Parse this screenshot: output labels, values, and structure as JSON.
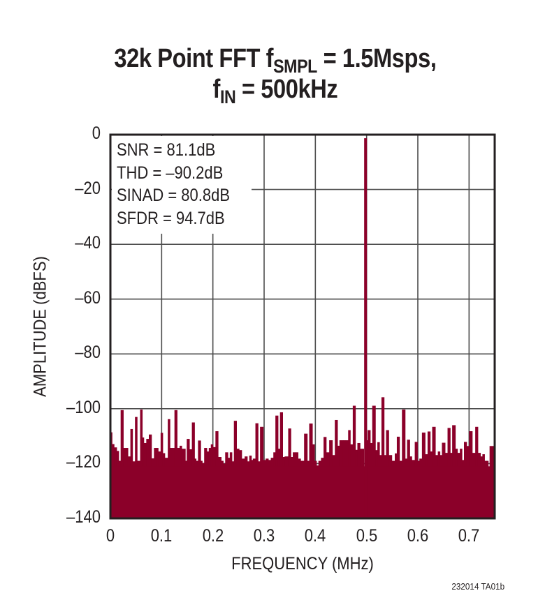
{
  "title": {
    "line1_prefix": "32k Point FFT f",
    "line1_sub": "SMPL",
    "line1_suffix": " = 1.5Msps,",
    "line2_prefix": "f",
    "line2_sub": "IN",
    "line2_suffix": " = 500kHz"
  },
  "legend": {
    "lines": [
      "SNR = 81.1dB",
      "THD = –90.2dB",
      "SINAD = 80.8dB",
      "SFDR = 94.7dB"
    ]
  },
  "footnote": "232014 TA01b",
  "colors": {
    "bars": "#8b0029",
    "grid": "#4d4d4d",
    "frame": "#231f20"
  },
  "chart_data": {
    "type": "bar",
    "title": "32k Point FFT fSMPL = 1.5Msps, fIN = 500kHz",
    "xlabel": "FREQUENCY (MHz)",
    "ylabel": "AMPLITUDE (dBFS)",
    "xlim": [
      0,
      0.75
    ],
    "ylim": [
      -140,
      0
    ],
    "xticks": [
      "0",
      "0.1",
      "0.2",
      "0.3",
      "0.4",
      "0.5",
      "0.6",
      "0.7"
    ],
    "xtick_values": [
      0,
      0.1,
      0.2,
      0.3,
      0.4,
      0.5,
      0.6,
      0.7
    ],
    "yticks": [
      "0",
      "–20",
      "–40",
      "–60",
      "–80",
      "–100",
      "–120",
      "–140"
    ],
    "ytick_values": [
      0,
      -20,
      -40,
      -60,
      -80,
      -100,
      -120,
      -140
    ],
    "grid": true,
    "annotations": [
      "SNR = 81.1dB",
      "THD = –90.2dB",
      "SINAD = 80.8dB",
      "SFDR = 94.7dB"
    ],
    "fundamental": {
      "freq_mhz": 0.4925,
      "amplitude_dbfs": -1.3
    },
    "bin_width_mhz": 0.0045,
    "bins": [
      [
        0.0,
        -108.6
      ],
      [
        0.003,
        -112.9
      ],
      [
        0.007,
        -114.1
      ],
      [
        0.012,
        -115.4
      ],
      [
        0.016,
        -119.0
      ],
      [
        0.02,
        -100.5
      ],
      [
        0.025,
        -114.3
      ],
      [
        0.03,
        -114.3
      ],
      [
        0.034,
        -117.4
      ],
      [
        0.039,
        -107.4
      ],
      [
        0.043,
        -119.2
      ],
      [
        0.048,
        -103.0
      ],
      [
        0.052,
        -119.0
      ],
      [
        0.058,
        -100.3
      ],
      [
        0.062,
        -110.5
      ],
      [
        0.065,
        -112.5
      ],
      [
        0.07,
        -111.0
      ],
      [
        0.075,
        -109.4
      ],
      [
        0.08,
        -118.1
      ],
      [
        0.085,
        -114.3
      ],
      [
        0.089,
        -114.3
      ],
      [
        0.093,
        -115.6
      ],
      [
        0.098,
        -108.8
      ],
      [
        0.102,
        -116.2
      ],
      [
        0.106,
        -117.9
      ],
      [
        0.112,
        -103.8
      ],
      [
        0.116,
        -114.3
      ],
      [
        0.12,
        -114.3
      ],
      [
        0.125,
        -100.5
      ],
      [
        0.13,
        -114.3
      ],
      [
        0.135,
        -113.5
      ],
      [
        0.139,
        -114.6
      ],
      [
        0.146,
        -119.0
      ],
      [
        0.149,
        -111.0
      ],
      [
        0.154,
        -114.8
      ],
      [
        0.159,
        -105.0
      ],
      [
        0.164,
        -118.2
      ],
      [
        0.167,
        -119.0
      ],
      [
        0.171,
        -111.6
      ],
      [
        0.176,
        -119.0
      ],
      [
        0.179,
        -119.8
      ],
      [
        0.183,
        -114.3
      ],
      [
        0.188,
        -115.6
      ],
      [
        0.192,
        -114.3
      ],
      [
        0.196,
        -113.0
      ],
      [
        0.2,
        -114.0
      ],
      [
        0.205,
        -108.2
      ],
      [
        0.21,
        -117.6
      ],
      [
        0.216,
        -119.0
      ],
      [
        0.22,
        -120.0
      ],
      [
        0.224,
        -115.9
      ],
      [
        0.229,
        -117.9
      ],
      [
        0.233,
        -115.9
      ],
      [
        0.237,
        -119.2
      ],
      [
        0.241,
        -104.4
      ],
      [
        0.246,
        -114.6
      ],
      [
        0.251,
        -115.1
      ],
      [
        0.256,
        -118.2
      ],
      [
        0.262,
        -117.4
      ],
      [
        0.267,
        -119.2
      ],
      [
        0.271,
        -117.1
      ],
      [
        0.275,
        -118.7
      ],
      [
        0.278,
        -118.2
      ],
      [
        0.283,
        -105.3
      ],
      [
        0.288,
        -119.2
      ],
      [
        0.292,
        -106.6
      ],
      [
        0.298,
        -118.7
      ],
      [
        0.303,
        -118.2
      ],
      [
        0.308,
        -118.7
      ],
      [
        0.313,
        -117.9
      ],
      [
        0.318,
        -115.9
      ],
      [
        0.322,
        -102.5
      ],
      [
        0.327,
        -114.6
      ],
      [
        0.331,
        -101.3
      ],
      [
        0.336,
        -117.6
      ],
      [
        0.34,
        -117.4
      ],
      [
        0.347,
        -107.2
      ],
      [
        0.352,
        -117.6
      ],
      [
        0.356,
        -115.9
      ],
      [
        0.362,
        -115.9
      ],
      [
        0.366,
        -118.2
      ],
      [
        0.371,
        -119.0
      ],
      [
        0.378,
        -109.1
      ],
      [
        0.384,
        -119.0
      ],
      [
        0.388,
        -105.4
      ],
      [
        0.394,
        -113.0
      ],
      [
        0.398,
        -119.0
      ],
      [
        0.402,
        -120.7
      ],
      [
        0.406,
        -119.0
      ],
      [
        0.411,
        -117.9
      ],
      [
        0.416,
        -110.3
      ],
      [
        0.421,
        -115.9
      ],
      [
        0.427,
        -111.5
      ],
      [
        0.433,
        -116.9
      ],
      [
        0.438,
        -104.1
      ],
      [
        0.443,
        -113.5
      ],
      [
        0.447,
        -111.5
      ],
      [
        0.454,
        -111.5
      ],
      [
        0.458,
        -111.5
      ],
      [
        0.464,
        -107.8
      ],
      [
        0.468,
        -113.0
      ],
      [
        0.473,
        -98.9
      ],
      [
        0.478,
        -115.0
      ],
      [
        0.482,
        -112.5
      ],
      [
        0.487,
        -114.6
      ],
      [
        0.498,
        -111.5
      ],
      [
        0.502,
        -107.8
      ],
      [
        0.507,
        -112.5
      ],
      [
        0.511,
        -98.9
      ],
      [
        0.517,
        -115.1
      ],
      [
        0.521,
        -112.2
      ],
      [
        0.525,
        -116.9
      ],
      [
        0.529,
        -95.8
      ],
      [
        0.534,
        -116.9
      ],
      [
        0.538,
        -107.8
      ],
      [
        0.543,
        -116.9
      ],
      [
        0.549,
        -119.0
      ],
      [
        0.555,
        -116.3
      ],
      [
        0.559,
        -110.2
      ],
      [
        0.564,
        -119.0
      ],
      [
        0.569,
        -100.3
      ],
      [
        0.575,
        -118.2
      ],
      [
        0.579,
        -111.3
      ],
      [
        0.584,
        -117.4
      ],
      [
        0.588,
        -118.7
      ],
      [
        0.594,
        -112.1
      ],
      [
        0.599,
        -119.0
      ],
      [
        0.603,
        -118.2
      ],
      [
        0.608,
        -108.7
      ],
      [
        0.614,
        -116.6
      ],
      [
        0.619,
        -108.3
      ],
      [
        0.624,
        -115.6
      ],
      [
        0.628,
        -106.6
      ],
      [
        0.634,
        -116.9
      ],
      [
        0.639,
        -115.6
      ],
      [
        0.643,
        -116.9
      ],
      [
        0.647,
        -112.4
      ],
      [
        0.653,
        -116.1
      ],
      [
        0.658,
        -107.0
      ],
      [
        0.663,
        -116.1
      ],
      [
        0.667,
        -106.0
      ],
      [
        0.673,
        -114.6
      ],
      [
        0.677,
        -116.1
      ],
      [
        0.682,
        -114.6
      ],
      [
        0.686,
        -118.7
      ],
      [
        0.69,
        -112.1
      ],
      [
        0.695,
        -113.6
      ],
      [
        0.7,
        -108.2
      ],
      [
        0.706,
        -116.1
      ],
      [
        0.712,
        -106.6
      ],
      [
        0.717,
        -116.1
      ],
      [
        0.722,
        -117.4
      ],
      [
        0.726,
        -116.6
      ],
      [
        0.73,
        -119.0
      ],
      [
        0.74,
        -113.6
      ]
    ]
  }
}
